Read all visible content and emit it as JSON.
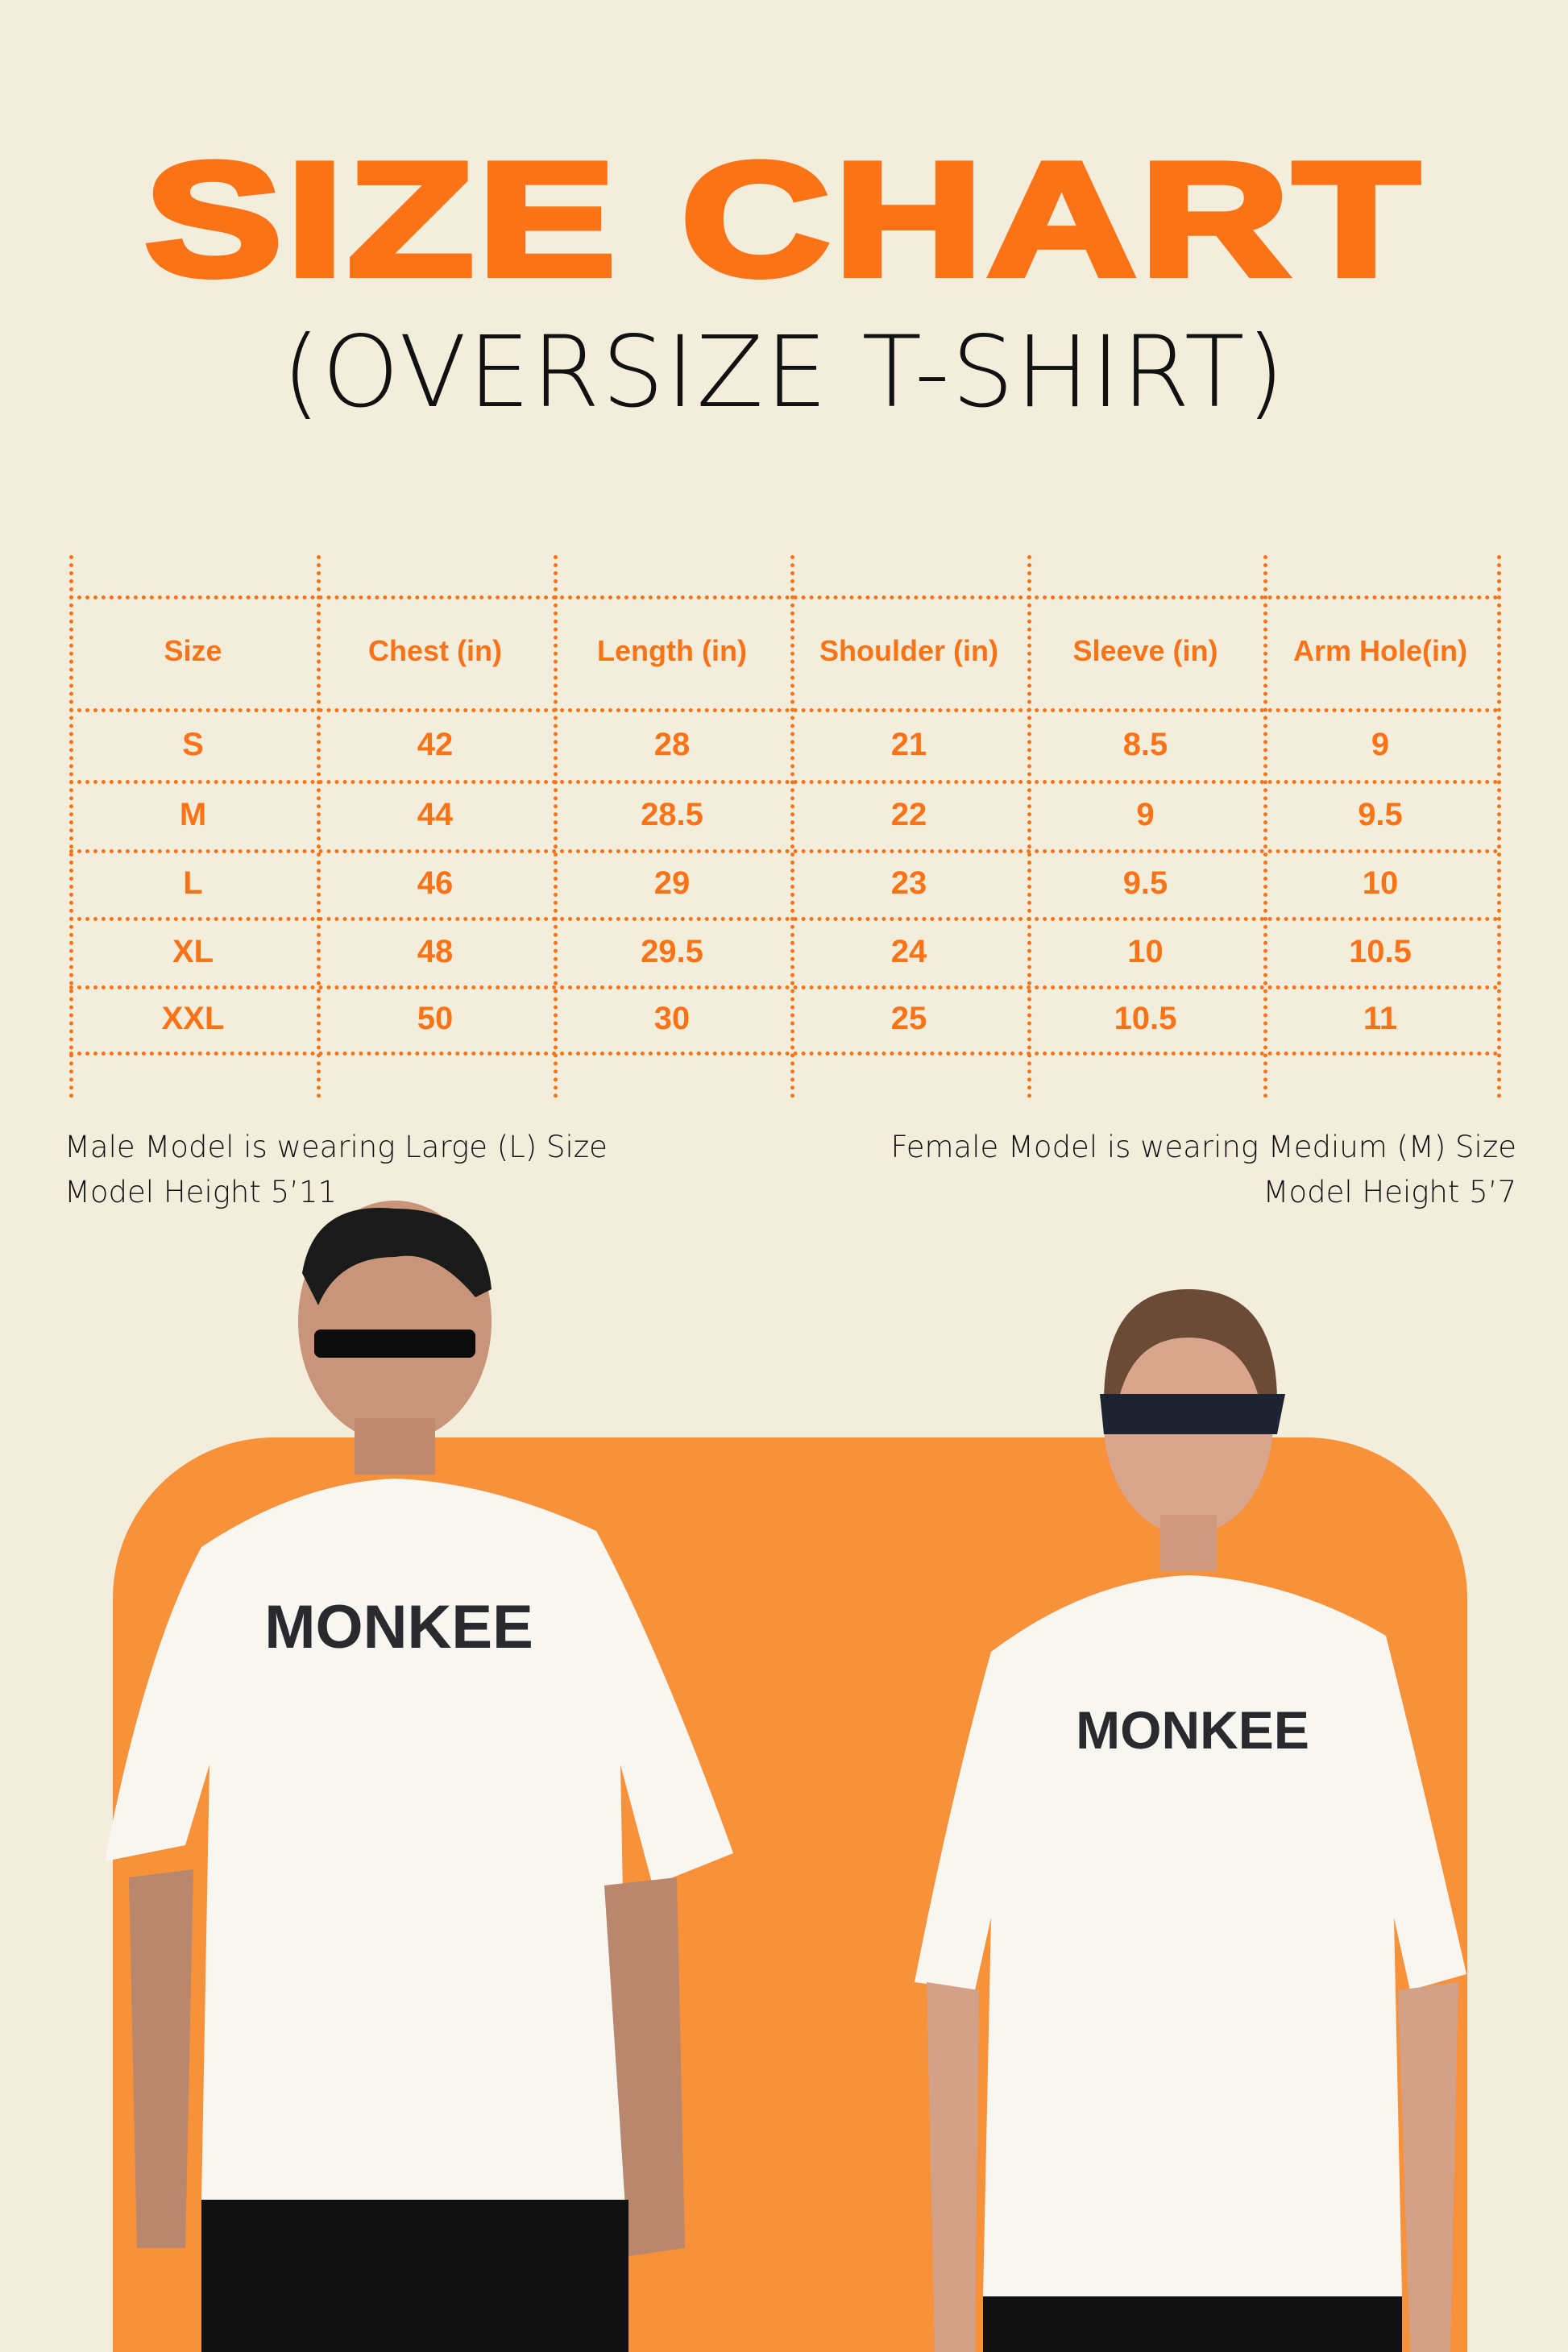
{
  "header": {
    "title": "SIZE CHART",
    "subtitle": "(OVERSIZE T-SHIRT)"
  },
  "table": {
    "columns": [
      "Size",
      "Chest (in)",
      "Length (in)",
      "Shoulder (in)",
      "Sleeve (in)",
      "Arm Hole(in)"
    ],
    "rows": [
      [
        "S",
        "42",
        "28",
        "21",
        "8.5",
        "9"
      ],
      [
        "M",
        "44",
        "28.5",
        "22",
        "9",
        "9.5"
      ],
      [
        "L",
        "46",
        "29",
        "23",
        "9.5",
        "10"
      ],
      [
        "XL",
        "48",
        "29.5",
        "24",
        "10",
        "10.5"
      ],
      [
        "XXL",
        "50",
        "30",
        "25",
        "10.5",
        "11"
      ]
    ]
  },
  "notes": {
    "male_size": "Male Model is wearing Large (L) Size",
    "male_height": "Model Height 5’11",
    "female_size": "Female Model is wearing Medium (M) Size",
    "female_height": "Model Height 5’7"
  },
  "models": {
    "shirt_print": "MONKEE"
  },
  "colors": {
    "accent": "#fb7317",
    "background": "#f3eddc",
    "panel": "#f7913a"
  }
}
